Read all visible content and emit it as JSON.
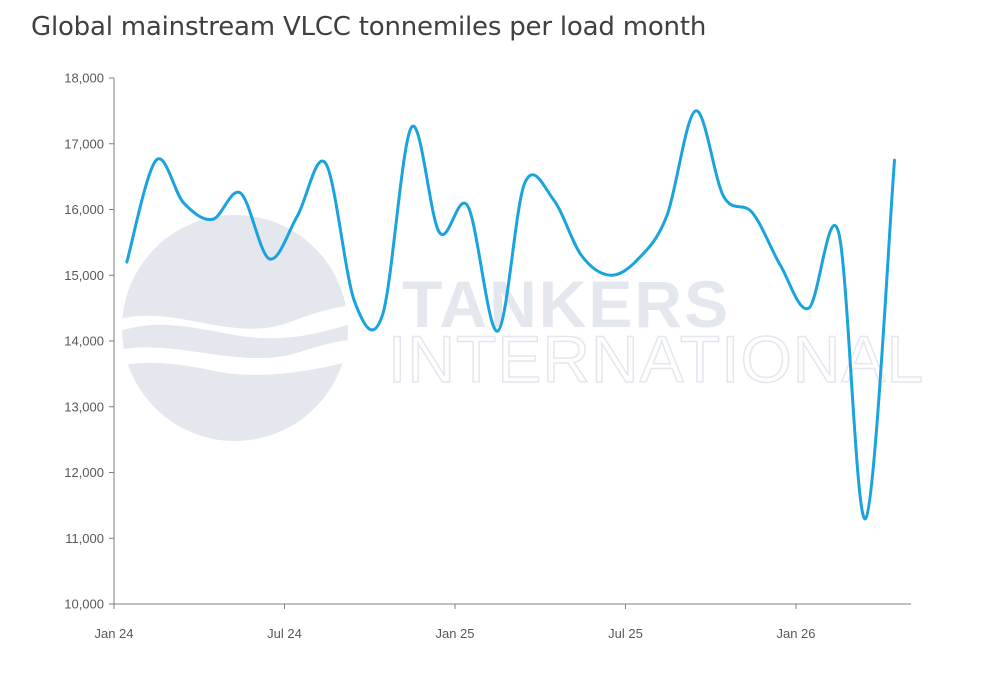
{
  "title": "Global mainstream VLCC tonnemiles per load month",
  "watermark": {
    "line1": "TANKERS",
    "line2": "INTERNATIONAL",
    "color": "#e4e7ee"
  },
  "chart_data": {
    "type": "line",
    "title": "Global mainstream VLCC tonnemiles per load month",
    "xlabel": "",
    "ylabel": "",
    "ylim": [
      10000,
      18000
    ],
    "yticks": [
      10000,
      11000,
      12000,
      13000,
      14000,
      15000,
      16000,
      17000,
      18000
    ],
    "ytick_labels": [
      "10,000",
      "11,000",
      "12,000",
      "13,000",
      "14,000",
      "15,000",
      "16,000",
      "17,000",
      "18,000"
    ],
    "xlim": [
      "2024-01",
      "2026-05"
    ],
    "xticks": [
      "2024-01",
      "2024-07",
      "2025-01",
      "2025-07",
      "2026-01"
    ],
    "xtick_labels": [
      "Jan 24",
      "Jul 24",
      "Jan 25",
      "Jul 25",
      "Jan 26"
    ],
    "grid": false,
    "series": [
      {
        "color": "#1aa3dc",
        "x": [
          "2024-01-15",
          "2024-02-15",
          "2024-03-15",
          "2024-04-15",
          "2024-05-15",
          "2024-06-15",
          "2024-07-15",
          "2024-08-15",
          "2024-09-15",
          "2024-10-15",
          "2024-11-15",
          "2024-12-15",
          "2025-01-15",
          "2025-02-15",
          "2025-03-15",
          "2025-04-15",
          "2025-05-15",
          "2025-06-15",
          "2025-07-15",
          "2025-08-15",
          "2025-09-15",
          "2025-10-15",
          "2025-11-15",
          "2025-12-15",
          "2026-01-15",
          "2026-02-15",
          "2026-03-15",
          "2026-04-15"
        ],
        "values": [
          15200,
          16750,
          16100,
          15850,
          16250,
          15250,
          15900,
          16700,
          14600,
          14400,
          17250,
          15650,
          16050,
          14150,
          16400,
          16150,
          15300,
          15000,
          15250,
          15900,
          17500,
          16200,
          15950,
          15150,
          14500,
          15650,
          11300,
          16750
        ]
      }
    ]
  }
}
